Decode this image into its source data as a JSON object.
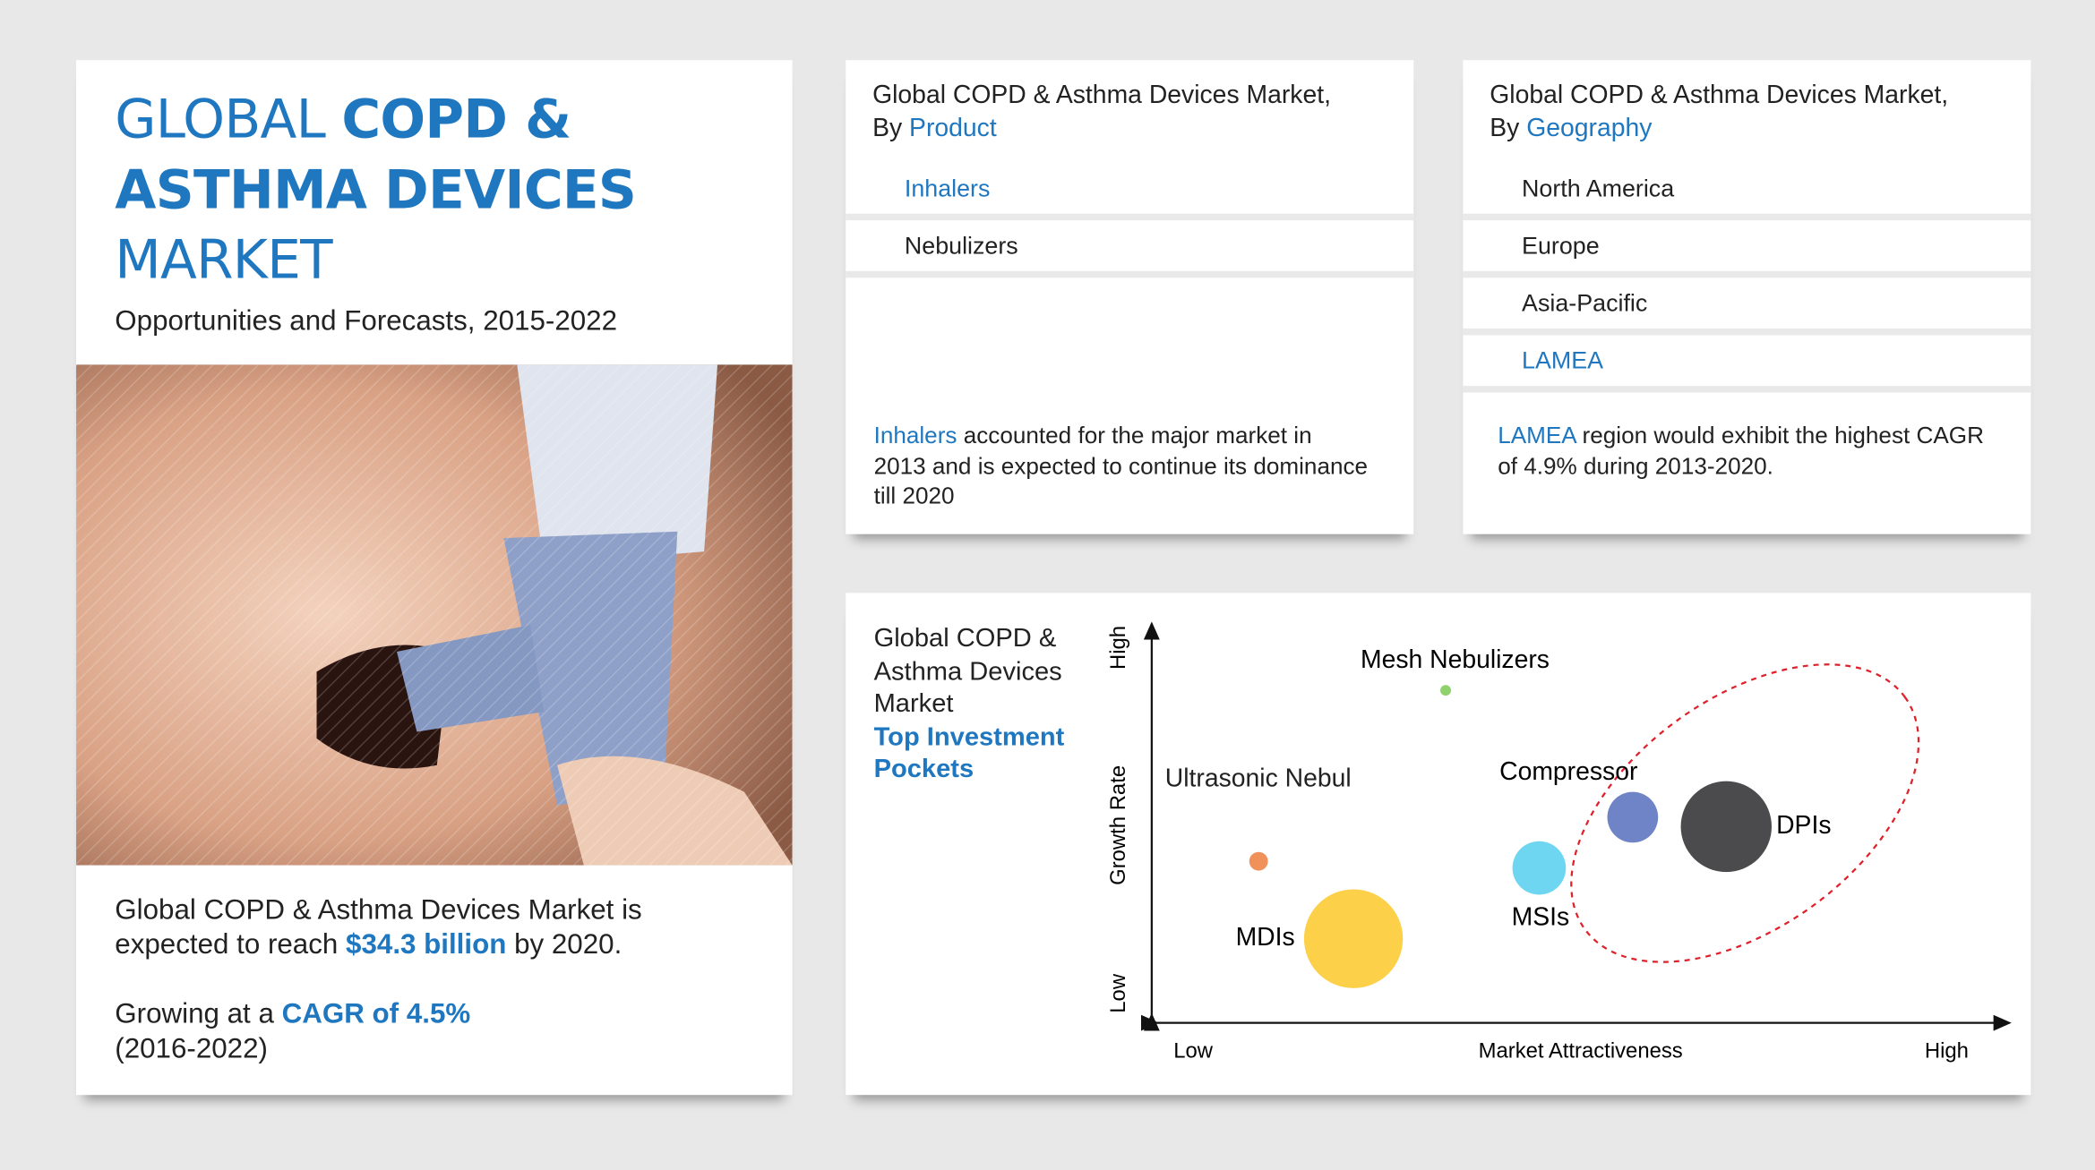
{
  "header": {
    "title_regular_1": "GLOBAL",
    "title_bold_1": "COPD &",
    "title_bold_2": "ASTHMA DEVICES",
    "title_regular_2": "MARKET",
    "subtitle": "Opportunities and Forecasts, 2015-2022"
  },
  "summary": {
    "reach_text": "Global COPD & Asthma Devices Market is expected to reach",
    "reach_value": "$34.3 billion",
    "reach_suffix": "by 2020.",
    "growth_text": "Growing at a",
    "growth_value": "CAGR of 4.5%",
    "growth_period": "(2016-2022)"
  },
  "product": {
    "title": "Global COPD & Asthma Devices Market,",
    "by": "By",
    "dimension": "Product",
    "items": [
      "Inhalers",
      "Nebulizers"
    ],
    "note_highlight": "Inhalers",
    "note": "accounted for the major market in 2013 and is expected to continue its dominance till 2020"
  },
  "geography": {
    "title": "Global COPD & Asthma Devices Market,",
    "by": "By",
    "dimension": "Geography",
    "items": [
      "North America",
      "Europe",
      "Asia-Pacific",
      "LAMEA"
    ],
    "note_highlight": "LAMEA",
    "note": "region would exhibit the highest CAGR of 4.9% during 2013-2020."
  },
  "pockets": {
    "title": "Global COPD & Asthma Devices Market",
    "subtitle": "Top Investment Pockets",
    "y_axis": {
      "label": "Growth Rate",
      "low": "Low",
      "high": "High"
    },
    "x_axis": {
      "label": "Market Attractiveness",
      "low": "Low",
      "high": "High"
    },
    "bubbles": [
      {
        "label": "Mesh Nebulizers"
      },
      {
        "label": "Ultrasonic Nebulizers"
      },
      {
        "label": "MDIs"
      },
      {
        "label": "MSIs"
      },
      {
        "label": "Compressor"
      },
      {
        "label": "DPIs"
      }
    ]
  }
}
